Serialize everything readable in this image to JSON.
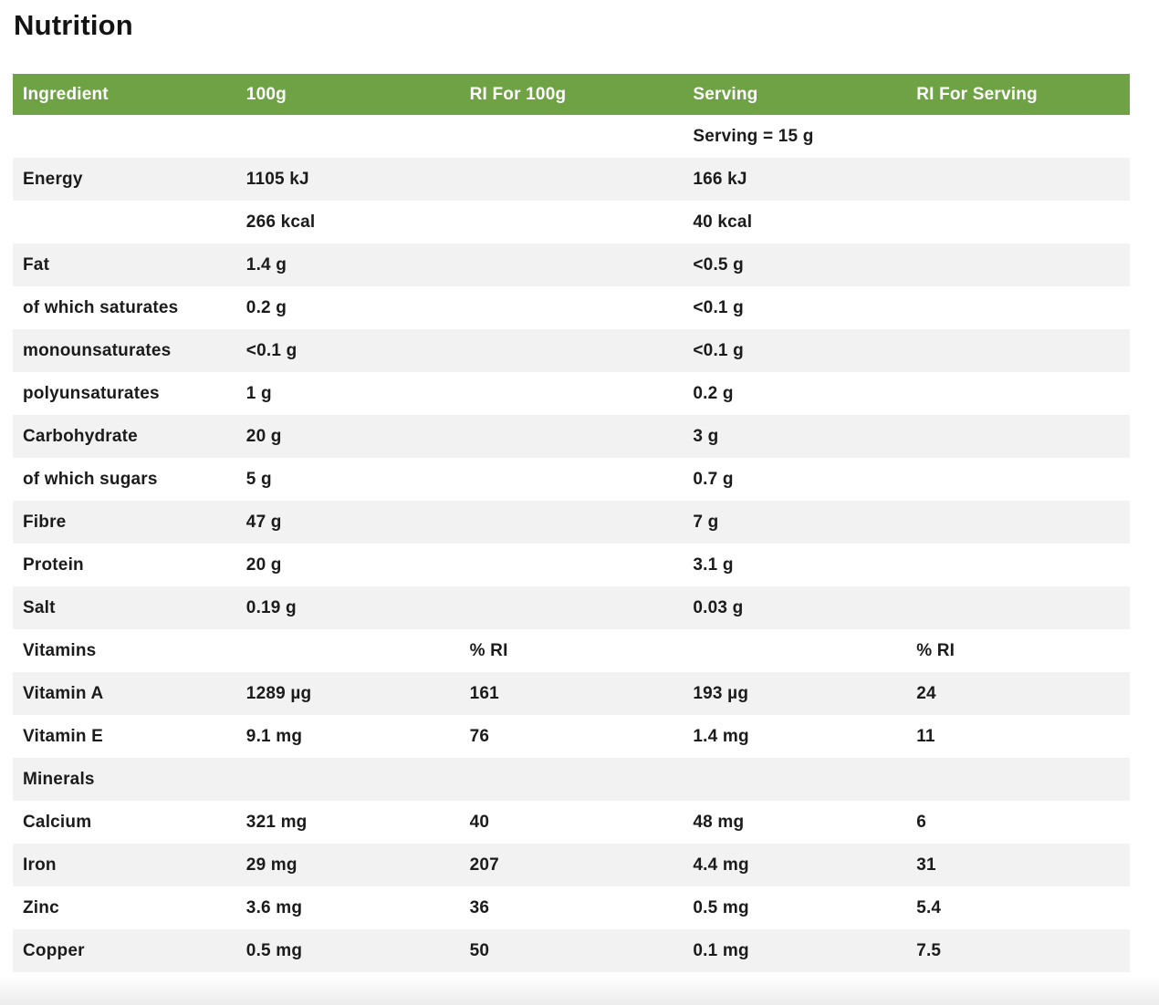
{
  "page": {
    "title": "Nutrition"
  },
  "colors": {
    "header_bg": "#6FA245",
    "header_text": "#FFFFFF",
    "row_alt_bg": "#F2F2F2",
    "text": "#1B1B1B",
    "page_bg": "#FFFFFF"
  },
  "table": {
    "columns": [
      "Ingredient",
      "100g",
      "RI For 100g",
      "Serving",
      "RI For Serving"
    ],
    "rows": [
      [
        "",
        "",
        "",
        "Serving = 15 g",
        ""
      ],
      [
        "Energy",
        "1105 kJ",
        "",
        "166 kJ",
        ""
      ],
      [
        "",
        "266 kcal",
        "",
        "40 kcal",
        ""
      ],
      [
        "Fat",
        "1.4 g",
        "",
        "<0.5 g",
        ""
      ],
      [
        "of which saturates",
        "0.2 g",
        "",
        "<0.1 g",
        ""
      ],
      [
        "monounsaturates",
        "<0.1 g",
        "",
        "<0.1 g",
        ""
      ],
      [
        "polyunsaturates",
        "1 g",
        "",
        "0.2 g",
        ""
      ],
      [
        "Carbohydrate",
        "20 g",
        "",
        "3 g",
        ""
      ],
      [
        "of which sugars",
        "5 g",
        "",
        "0.7 g",
        ""
      ],
      [
        "Fibre",
        "47 g",
        "",
        "7 g",
        ""
      ],
      [
        "Protein",
        "20 g",
        "",
        "3.1 g",
        ""
      ],
      [
        "Salt",
        "0.19 g",
        "",
        "0.03 g",
        ""
      ],
      [
        "Vitamins",
        "",
        "% RI",
        "",
        "% RI"
      ],
      [
        "Vitamin A",
        "1289 µg",
        "161",
        "193 µg",
        "24"
      ],
      [
        "Vitamin E",
        "9.1 mg",
        "76",
        "1.4 mg",
        "11"
      ],
      [
        "Minerals",
        "",
        "",
        "",
        ""
      ],
      [
        "Calcium",
        "321 mg",
        "40",
        "48 mg",
        "6"
      ],
      [
        "Iron",
        "29 mg",
        "207",
        "4.4 mg",
        "31"
      ],
      [
        "Zinc",
        "3.6 mg",
        "36",
        "0.5 mg",
        "5.4"
      ],
      [
        "Copper",
        "0.5 mg",
        "50",
        "0.1 mg",
        "7.5"
      ]
    ]
  }
}
